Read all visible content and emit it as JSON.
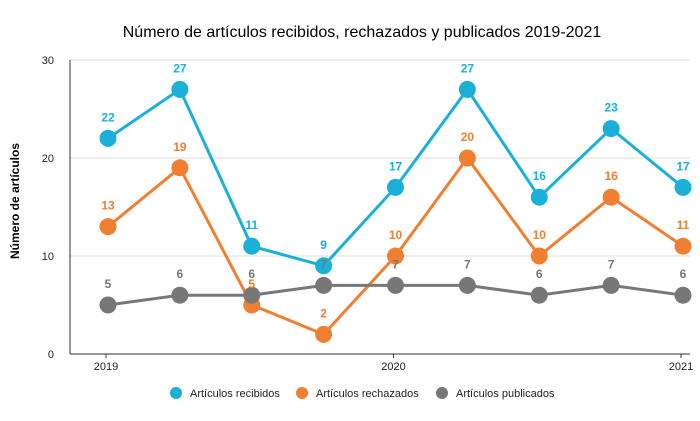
{
  "chart_data": {
    "type": "line",
    "title": "Número de artículos recibidos, rechazados y publicados 2019-2021",
    "xlabel": "",
    "ylabel": "Número de artículos",
    "ylim": [
      0,
      30
    ],
    "yticks": [
      "0",
      "10",
      "20",
      "30"
    ],
    "x_tick_labels": [
      "2019",
      "2020",
      "2021"
    ],
    "grid": "horizontal",
    "legend_position": "bottom",
    "series": [
      {
        "name": "Artículos recibidos",
        "color": "#1AB0D8",
        "values": [
          22,
          27,
          11,
          9,
          17,
          27,
          16,
          23,
          17
        ]
      },
      {
        "name": "Artículos rechazados",
        "color": "#F07F31",
        "values": [
          13,
          19,
          5,
          2,
          10,
          20,
          10,
          16,
          11
        ]
      },
      {
        "name": "Artículos publicados",
        "color": "#777777",
        "values": [
          5,
          6,
          6,
          7,
          7,
          7,
          6,
          7,
          6
        ]
      }
    ]
  }
}
